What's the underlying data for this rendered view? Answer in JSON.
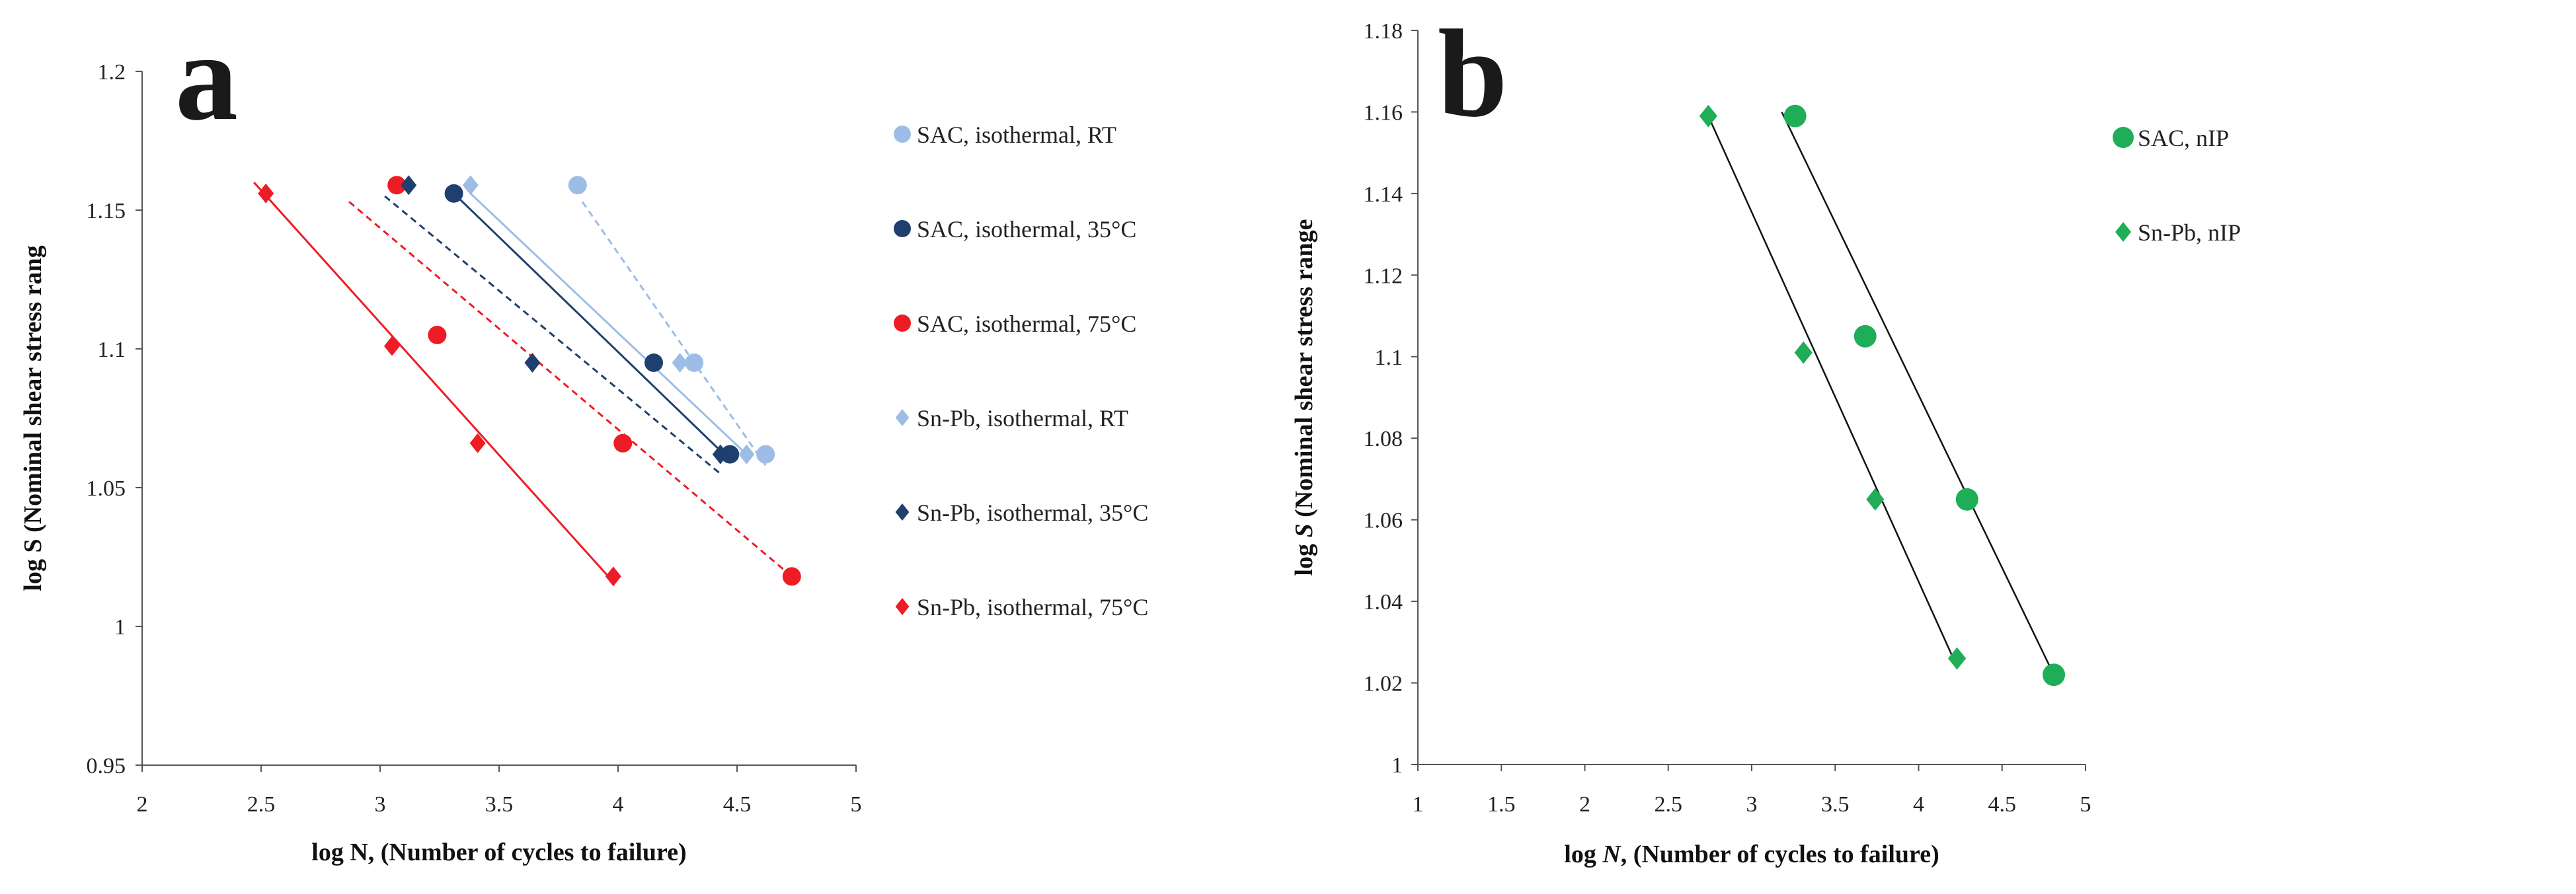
{
  "colors": {
    "sac_rt": "#9dbde6",
    "sac_35": "#1f3f6e",
    "sac_75": "#ee1c24",
    "snpb_rt": "#9dbde6",
    "snpb_35": "#1f3f6e",
    "snpb_75": "#ee1c24",
    "green": "#1fae57",
    "fit_black": "#111111",
    "axis": "#555555"
  },
  "chart_data": [
    {
      "panel": "a",
      "type": "scatter",
      "xlabel": "log N, (Number of cycles to failure)",
      "ylabel": "log S (Nominal shear stress rang",
      "xlim": [
        2,
        5
      ],
      "ylim": [
        0.95,
        1.2
      ],
      "xticks": [
        "2",
        "2.5",
        "3",
        "3.5",
        "4",
        "4.5",
        "5"
      ],
      "yticks": [
        "0.95",
        "1",
        "1.05",
        "1.1",
        "1.15",
        "1.2"
      ],
      "legend_position": "right",
      "series": [
        {
          "name": "SAC, isothermal, RT",
          "marker": "circle",
          "color_key": "sac_rt",
          "x": [
            3.83,
            4.32,
            4.62
          ],
          "y": [
            1.159,
            1.095,
            1.062
          ],
          "fit": {
            "x": [
              3.85,
              4.62
            ],
            "y": [
              1.153,
              1.058
            ],
            "dash": true
          }
        },
        {
          "name": "SAC, isothermal, 35°C",
          "marker": "circle",
          "color_key": "sac_35",
          "x": [
            3.31,
            4.15,
            4.47
          ],
          "y": [
            1.156,
            1.095,
            1.062
          ],
          "fit": {
            "x": [
              3.31,
              4.47
            ],
            "y": [
              1.156,
              1.06
            ],
            "dash": false
          }
        },
        {
          "name": "SAC, isothermal, 75°C",
          "marker": "circle",
          "color_key": "sac_75",
          "x": [
            3.07,
            3.24,
            4.02,
            4.73
          ],
          "y": [
            1.159,
            1.105,
            1.066,
            1.018
          ],
          "fit": {
            "x": [
              2.87,
              4.73
            ],
            "y": [
              1.153,
              1.018
            ],
            "dash": true
          }
        },
        {
          "name": "Sn-Pb, isothermal, RT",
          "marker": "diamond",
          "color_key": "snpb_rt",
          "x": [
            3.38,
            4.26,
            4.54
          ],
          "y": [
            1.159,
            1.095,
            1.062
          ],
          "fit": {
            "x": [
              3.38,
              4.54
            ],
            "y": [
              1.156,
              1.062
            ],
            "dash": false
          }
        },
        {
          "name": "Sn-Pb, isothermal, 35°C",
          "marker": "diamond",
          "color_key": "snpb_35",
          "x": [
            3.12,
            3.64,
            4.43
          ],
          "y": [
            1.159,
            1.095,
            1.062
          ],
          "fit": {
            "x": [
              3.02,
              4.43
            ],
            "y": [
              1.155,
              1.055
            ],
            "dash": true
          }
        },
        {
          "name": "Sn-Pb, isothermal, 75°C",
          "marker": "diamond",
          "color_key": "snpb_75",
          "x": [
            2.52,
            3.05,
            3.41,
            3.98
          ],
          "y": [
            1.156,
            1.101,
            1.066,
            1.018
          ],
          "fit": {
            "x": [
              2.47,
              3.98
            ],
            "y": [
              1.16,
              1.016
            ],
            "dash": false
          }
        }
      ]
    },
    {
      "panel": "b",
      "type": "scatter",
      "xlabel_parts": [
        "log ",
        "N",
        ", (Number of cycles to failure)"
      ],
      "ylabel_parts": [
        "log ",
        "S",
        " (Nominal shear stress range"
      ],
      "xlim": [
        1,
        5
      ],
      "ylim": [
        1,
        1.18
      ],
      "xticks": [
        "1",
        "1.5",
        "2",
        "2.5",
        "3",
        "3.5",
        "4",
        "4.5",
        "5"
      ],
      "yticks": [
        "1",
        "1.02",
        "1.04",
        "1.06",
        "1.08",
        "1.1",
        "1.12",
        "1.14",
        "1.16",
        "1.18"
      ],
      "legend_position": "right",
      "series": [
        {
          "name": "SAC, nIP",
          "marker": "circle",
          "color_key": "green",
          "x": [
            3.26,
            3.68,
            4.29,
            4.81
          ],
          "y": [
            1.159,
            1.105,
            1.065,
            1.022
          ],
          "fit": {
            "x": [
              3.18,
              4.81
            ],
            "y": [
              1.16,
              1.022
            ],
            "dash": false
          }
        },
        {
          "name": "Sn-Pb, nIP",
          "marker": "diamond",
          "color_key": "green",
          "x": [
            2.74,
            3.31,
            3.74,
            4.23
          ],
          "y": [
            1.159,
            1.101,
            1.065,
            1.026
          ],
          "fit": {
            "x": [
              2.74,
              4.23
            ],
            "y": [
              1.159,
              1.024
            ],
            "dash": false
          }
        }
      ]
    }
  ],
  "panel_labels": {
    "a": "a",
    "b": "b"
  }
}
